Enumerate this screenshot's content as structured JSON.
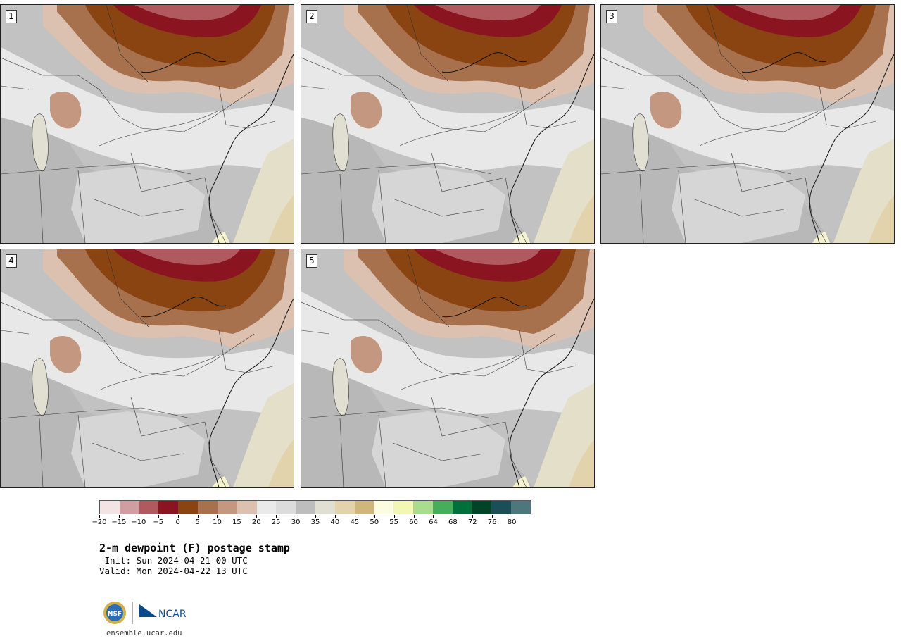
{
  "panels": [
    {
      "label": "1"
    },
    {
      "label": "2"
    },
    {
      "label": "3"
    },
    {
      "label": "4"
    },
    {
      "label": "5"
    }
  ],
  "colorbar": {
    "colors": [
      "#f2e4e4",
      "#d09ea2",
      "#b05a60",
      "#8a1520",
      "#8a4412",
      "#a8714e",
      "#c49880",
      "#dcc0b0",
      "#eaeaea",
      "#dcdcdc",
      "#bdbdbd",
      "#e0dfd2",
      "#e2d3ac",
      "#d0b67a",
      "#fcfce0",
      "#f2f7b4",
      "#a8dd90",
      "#46ae5a",
      "#00703a",
      "#004328",
      "#1b4e57",
      "#4e777d"
    ],
    "tick_labels": [
      "−20",
      "−15",
      "−10",
      "−5",
      "0",
      "5",
      "10",
      "15",
      "20",
      "25",
      "30",
      "35",
      "40",
      "45",
      "50",
      "55",
      "60",
      "64",
      "68",
      "72",
      "76",
      "80"
    ]
  },
  "title": "2-m dewpoint (F) postage stamp",
  "init": " Init: Sun 2024-04-21 00 UTC",
  "valid": "Valid: Mon 2024-04-22 13 UTC",
  "logo": {
    "nsf_text": "NSF",
    "ncar_text": "NCAR"
  },
  "url": "ensemble.ucar.edu"
}
